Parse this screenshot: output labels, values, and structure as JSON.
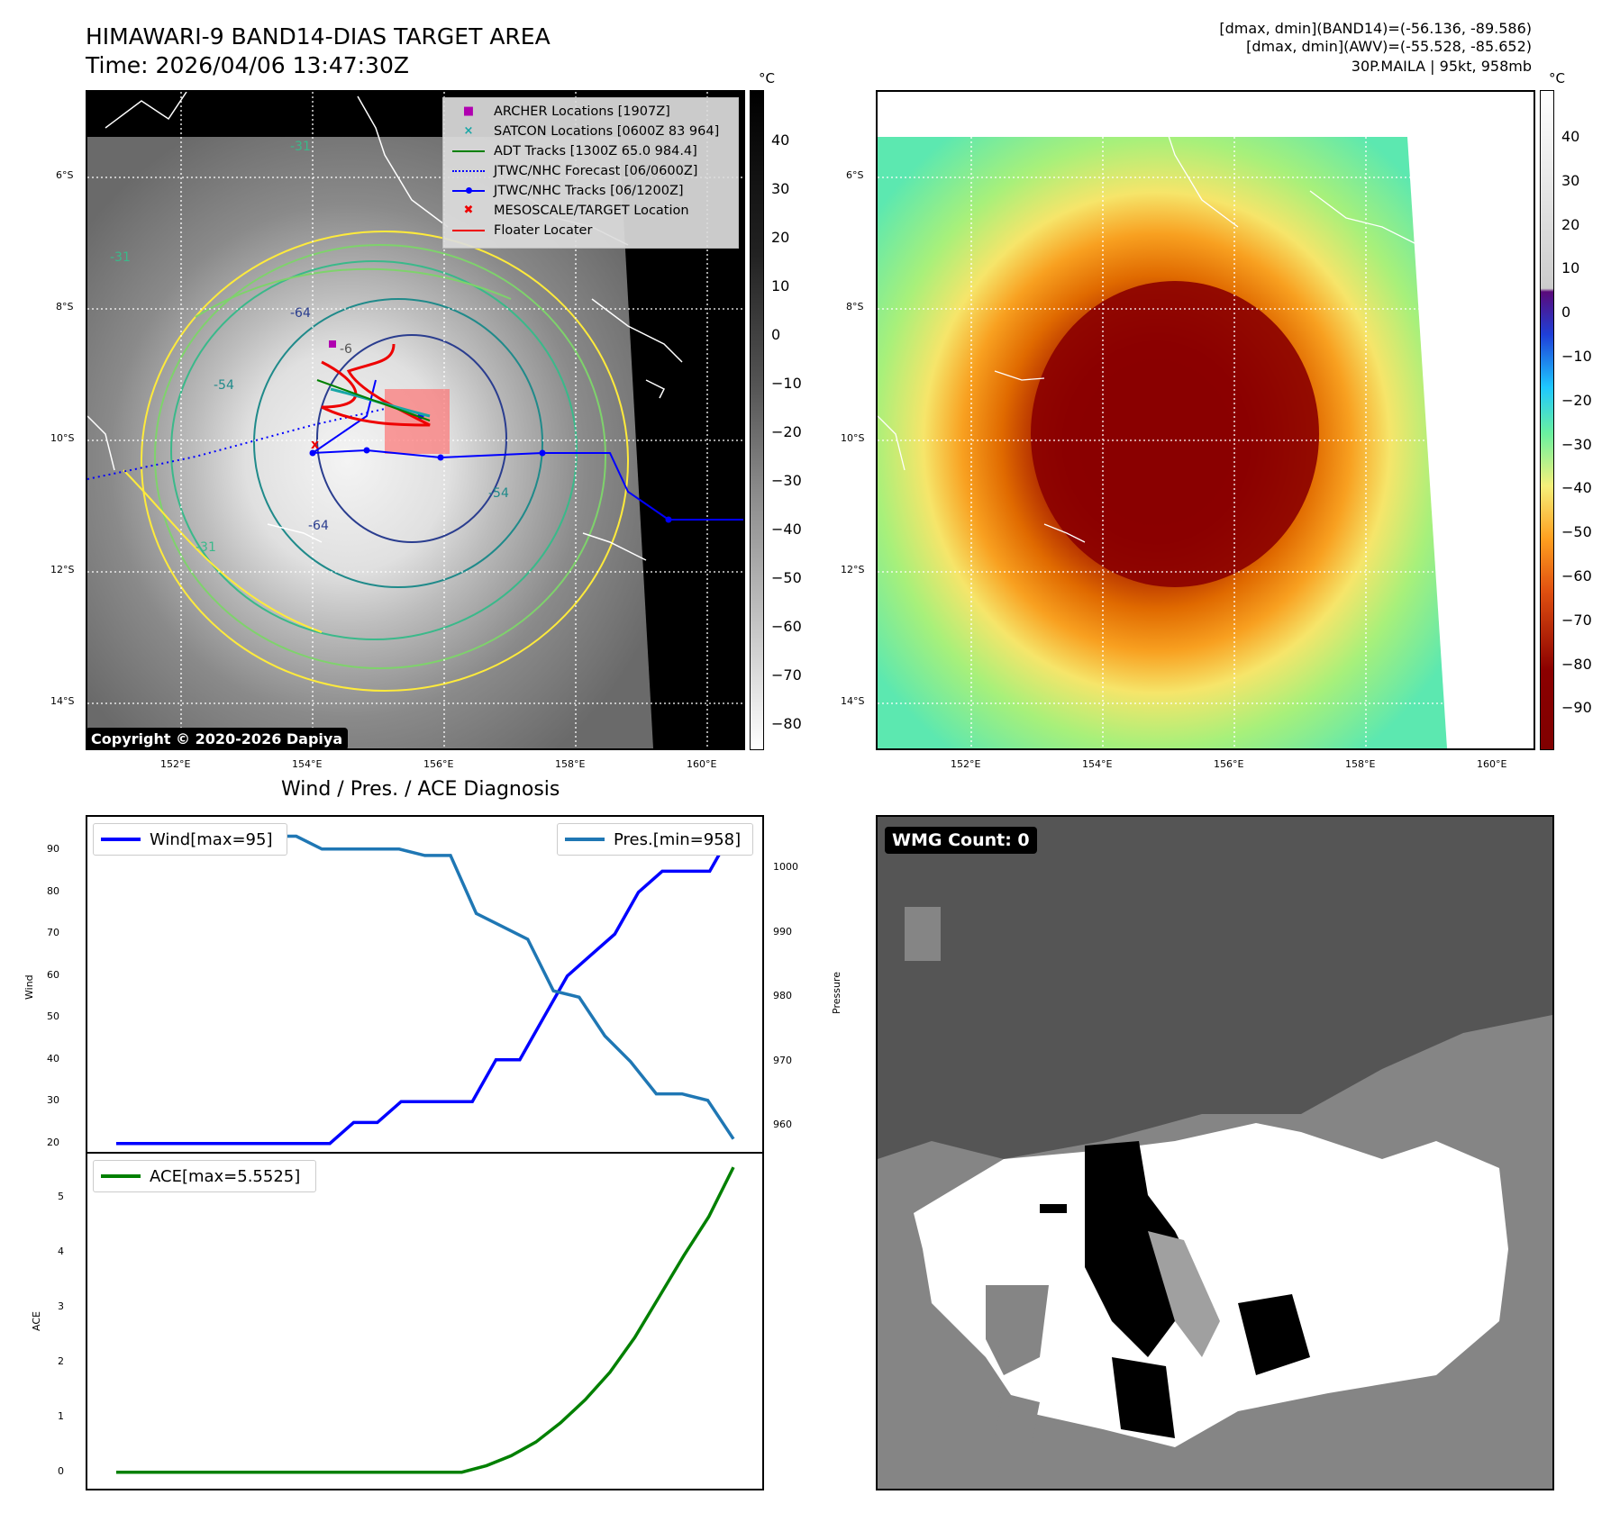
{
  "header": {
    "title_line1": "HIMAWARI-9 BAND14-DIAS TARGET AREA",
    "title_line2": "Time: 2026/04/06 13:47:30Z",
    "right_line1": "[dmax, dmin](BAND14)=(-56.136, -89.586)",
    "right_line2": "[dmax, dmin](AWV)=(-55.528, -85.652)",
    "right_line3": "30P.MAILA | 95kt, 958mb"
  },
  "legend": {
    "archer": "ARCHER Locations [1907Z]",
    "satcon": "SATCON Locations [0600Z 83 964]",
    "adt": "ADT Tracks [1300Z 65.0 984.4]",
    "forecast": "JTWC/NHC Forecast [06/0600Z]",
    "tracks": "JTWC/NHC Tracks [06/1200Z]",
    "mesoscale": "MESOSCALE/TARGET Location",
    "floater": "Floater Locater"
  },
  "map": {
    "lat_labels": [
      "6°S",
      "8°S",
      "10°S",
      "12°S",
      "14°S"
    ],
    "lon_labels": [
      "152°E",
      "154°E",
      "156°E",
      "158°E",
      "160°E"
    ],
    "contour_labels": [
      "-64",
      "-54",
      "-64",
      "-54",
      "-31",
      "-31",
      "-31",
      "-6"
    ],
    "copyright": "Copyright © 2020-2026 Dapiya"
  },
  "colorbar_gray": {
    "unit": "°C",
    "ticks": [
      "40",
      "30",
      "20",
      "10",
      "0",
      "−10",
      "−20",
      "−30",
      "−40",
      "−50",
      "−60",
      "−70",
      "−80"
    ]
  },
  "colorbar_color": {
    "unit": "°C",
    "ticks": [
      "40",
      "30",
      "20",
      "10",
      "0",
      "−10",
      "−20",
      "−30",
      "−40",
      "−50",
      "−60",
      "−70",
      "−80",
      "−90"
    ]
  },
  "diagnosis": {
    "title": "Wind / Pres. / ACE Diagnosis",
    "wind_ylabel": "Wind",
    "pres_ylabel": "Pressure",
    "ace_ylabel": "ACE",
    "wind_legend": "Wind[max=95]",
    "pres_legend": "Pres.[min=958]",
    "ace_legend": "ACE[max=5.5525]",
    "wind_ticks": [
      "90",
      "80",
      "70",
      "60",
      "50",
      "40",
      "30",
      "20"
    ],
    "pres_ticks": [
      "1000",
      "990",
      "980",
      "970",
      "960"
    ],
    "ace_ticks": [
      "5",
      "4",
      "3",
      "2",
      "1",
      "0"
    ]
  },
  "wmg": {
    "label": "WMG Count: 0"
  },
  "chart_data": [
    {
      "type": "line",
      "title": "Wind / Pres. / ACE Diagnosis",
      "ylabel": "Wind",
      "ylim": [
        18,
        98
      ],
      "series": [
        {
          "name": "Wind[max=95]",
          "color": "#0000ff",
          "values": [
            20,
            20,
            20,
            20,
            20,
            20,
            20,
            20,
            20,
            20,
            25,
            25,
            30,
            30,
            30,
            30,
            40,
            40,
            50,
            60,
            65,
            70,
            80,
            85,
            85,
            85,
            95
          ]
        },
        {
          "name": "Pres.[min=958]",
          "color": "#1f77b4",
          "axis": "right",
          "ylim": [
            956,
            1008
          ],
          "values": [
            1006,
            1006,
            1006,
            1005,
            1005,
            1005,
            1005,
            1005,
            1003,
            1003,
            1003,
            1003,
            1002,
            1002,
            993,
            991,
            989,
            981,
            980,
            974,
            970,
            965,
            965,
            964,
            958
          ]
        }
      ]
    },
    {
      "type": "line",
      "ylabel": "ACE",
      "ylim": [
        -0.3,
        5.8
      ],
      "series": [
        {
          "name": "ACE[max=5.5525]",
          "color": "#008000",
          "values": [
            0,
            0,
            0,
            0,
            0,
            0,
            0,
            0,
            0,
            0,
            0,
            0,
            0,
            0,
            0,
            0.12,
            0.3,
            0.55,
            0.9,
            1.32,
            1.82,
            2.45,
            3.2,
            3.95,
            4.65,
            5.5525
          ]
        }
      ]
    }
  ]
}
